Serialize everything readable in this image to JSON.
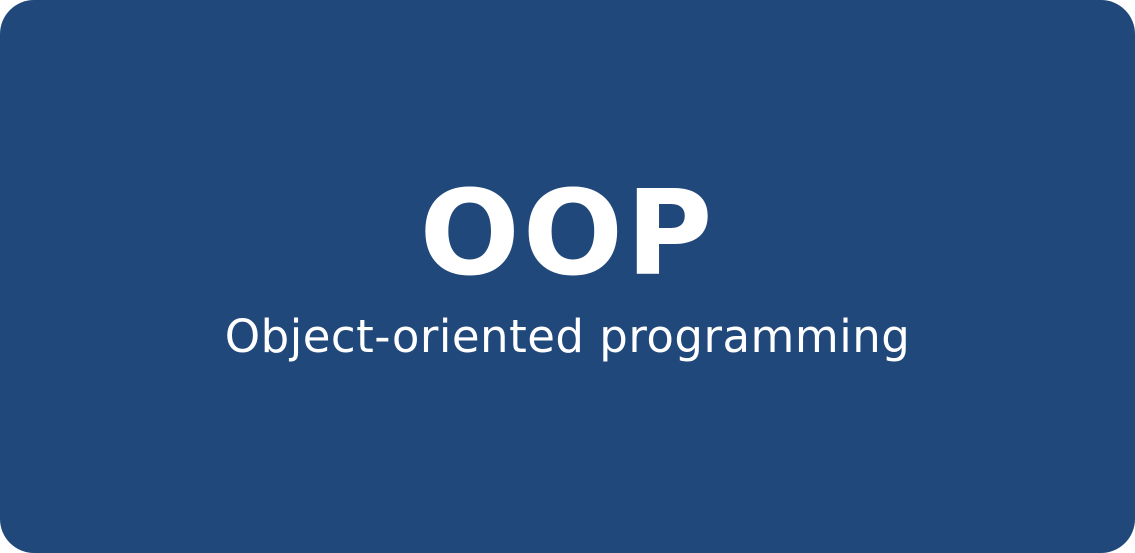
{
  "card": {
    "title": "OOP",
    "subtitle": "Object-oriented programming",
    "background_color": "#21487b",
    "text_color": "#ffffff"
  }
}
